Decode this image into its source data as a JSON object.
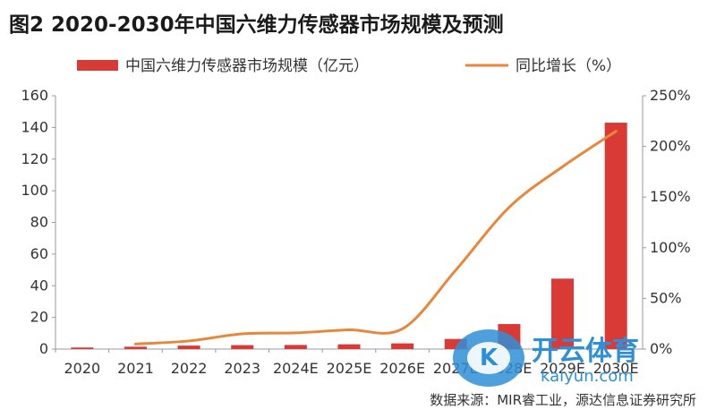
{
  "figure_title": "图2 2020-2030年中国六维力传感器市场规模及预测",
  "source": "数据来源：MIR睿工业，源达信息证券研究所",
  "watermark": {
    "text": "开云体育",
    "subtext": "kaiyun.com"
  },
  "chart_data": {
    "type": "bar",
    "categories": [
      "2020",
      "2021",
      "2022",
      "2023",
      "2024E",
      "2025E",
      "2026E",
      "2027E",
      "2028E",
      "2029E",
      "2030E"
    ],
    "series": [
      {
        "name": "中国六维力传感器市场规模（亿元）",
        "type": "bar",
        "axis": "left",
        "values": [
          1.0,
          1.5,
          2.2,
          2.5,
          2.6,
          3.0,
          3.6,
          6.4,
          15.8,
          44.5,
          143.0
        ]
      },
      {
        "name": "同比增长（%）",
        "type": "line",
        "axis": "right",
        "values": [
          null,
          5,
          8,
          15,
          16,
          19,
          20,
          78,
          140,
          180,
          215
        ]
      }
    ],
    "y_left": {
      "min": 0,
      "max": 160,
      "ticks": [
        "0",
        "20",
        "40",
        "60",
        "80",
        "100",
        "120",
        "140",
        "160"
      ]
    },
    "y_right": {
      "min": 0,
      "max": 250,
      "ticks": [
        "0%",
        "50%",
        "100%",
        "150%",
        "200%",
        "250%"
      ]
    },
    "legend_position": "top",
    "colors": {
      "bar": "#d93a36",
      "line": "#e8863a",
      "axis": "#999999",
      "text": "#333333"
    }
  }
}
